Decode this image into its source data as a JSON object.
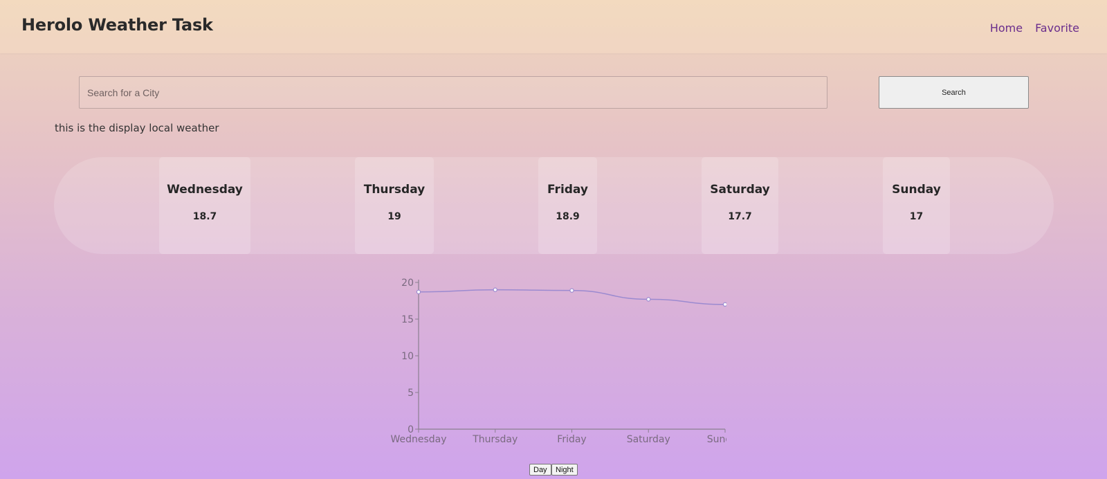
{
  "header": {
    "title": "Herolo Weather Task",
    "nav": [
      {
        "label": "Home"
      },
      {
        "label": "Favorite"
      }
    ]
  },
  "search": {
    "placeholder": "Search for a City",
    "value": "",
    "button_label": "Search"
  },
  "local_weather_text": "this is the display local weather",
  "forecast": [
    {
      "day": "Wednesday",
      "temp": "18.7"
    },
    {
      "day": "Thursday",
      "temp": "19"
    },
    {
      "day": "Friday",
      "temp": "18.9"
    },
    {
      "day": "Saturday",
      "temp": "17.7"
    },
    {
      "day": "Sunday",
      "temp": "17"
    }
  ],
  "chart_data": {
    "type": "line",
    "categories": [
      "Wednesday",
      "Thursday",
      "Friday",
      "Saturday",
      "Sunday"
    ],
    "series": [
      {
        "values": [
          18.7,
          19,
          18.9,
          17.7,
          17
        ]
      }
    ],
    "ylim": [
      0,
      20
    ],
    "yticks": [
      0,
      5,
      10,
      15,
      20
    ],
    "line_color": "#9b8ad0",
    "axis_color": "#8a7f90",
    "grid": false
  },
  "toggle": {
    "day_label": "Day",
    "night_label": "Night"
  }
}
